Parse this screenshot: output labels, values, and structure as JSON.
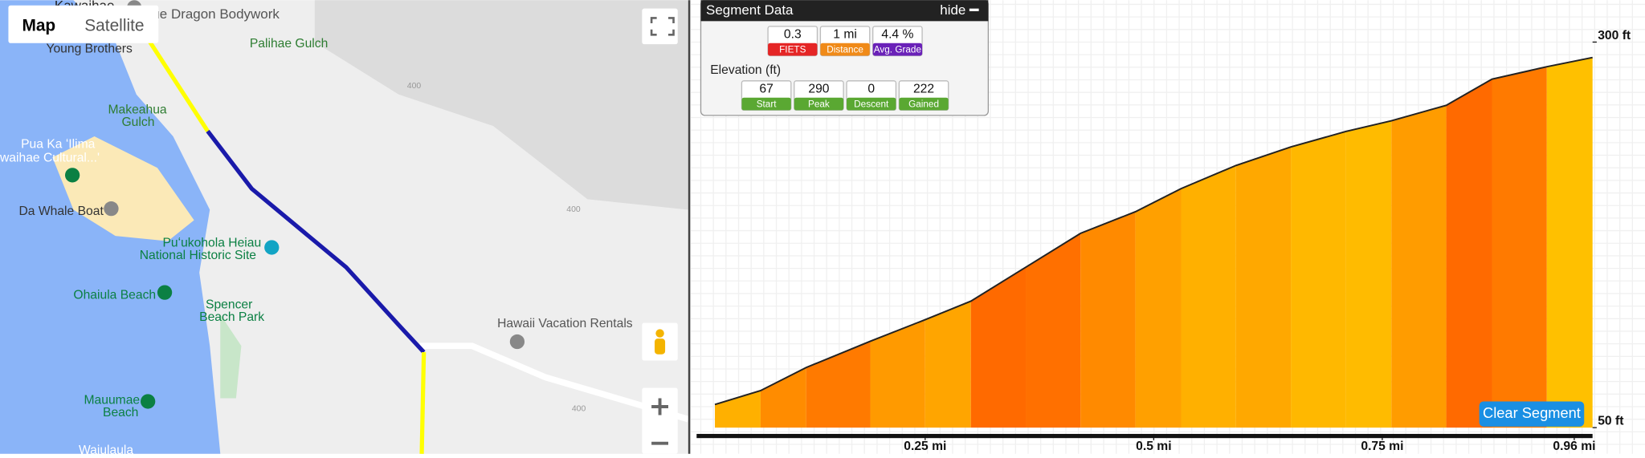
{
  "map": {
    "buttons": [
      "Map",
      "Satellite"
    ],
    "labels": [
      "Kawaihae",
      "ue Dragon Bodywork",
      "Young Brothers",
      "Palihae Gulch",
      "Makeahua",
      "Gulch",
      "Pua Ka ʻIlima",
      "waihae Cultural...'",
      "Da Whale Boat",
      "Puʻukohola Heiau",
      "National Historic Site",
      "Ohaiula Beach",
      "Spencer",
      "Beach Park",
      "Hawaii Vacation Rentals",
      "Mauumae",
      "Beach",
      "Waiulaula",
      "400",
      "400",
      "400"
    ]
  },
  "segment_panel": {
    "title": "Segment Data",
    "hide": "hide",
    "stats": [
      {
        "value": "0.3",
        "label": "FIETS"
      },
      {
        "value": "1 mi",
        "label": "Distance"
      },
      {
        "value": "4.4 %",
        "label": "Avg. Grade"
      }
    ],
    "elevation_title": "Elevation (ft)",
    "elevation_stats": [
      {
        "value": "67",
        "label": "Start"
      },
      {
        "value": "290",
        "label": "Peak"
      },
      {
        "value": "0",
        "label": "Descent"
      },
      {
        "value": "222",
        "label": "Gained"
      }
    ]
  },
  "profile": {
    "x": [
      0.02,
      0.07,
      0.12,
      0.19,
      0.25,
      0.3,
      0.36,
      0.42,
      0.48,
      0.53,
      0.59,
      0.65,
      0.71,
      0.76,
      0.82,
      0.87,
      0.93,
      0.98
    ],
    "elevation": [
      65,
      74,
      89,
      106,
      120,
      132,
      154,
      176,
      190,
      205,
      220,
      232,
      242,
      249,
      259,
      276,
      284,
      290
    ],
    "colors": [
      "#ffb000",
      "#ff8c00",
      "#ff7a00",
      "#ff9a00",
      "#ffa500",
      "#ff6a00",
      "#ff7000",
      "#ff8a00",
      "#ffa000",
      "#ffb000",
      "#ffa800",
      "#ffb800",
      "#ffbb00",
      "#ff9c00",
      "#ff6a00",
      "#ff7a00",
      "#ffc000"
    ],
    "xlim": [
      0,
      0.98
    ],
    "ylim": [
      50,
      300
    ],
    "xticks": [
      {
        "value": 0.25,
        "label": "0.25 mi"
      },
      {
        "value": 0.5,
        "label": "0.5 mi"
      },
      {
        "value": 0.75,
        "label": "0.75 mi"
      },
      {
        "value": 0.96,
        "label": "0.96 mi"
      }
    ],
    "yticks": [
      {
        "value": 50,
        "label": "50 ft"
      },
      {
        "value": 300,
        "label": "300 ft"
      }
    ],
    "button": "Clear Segment"
  }
}
